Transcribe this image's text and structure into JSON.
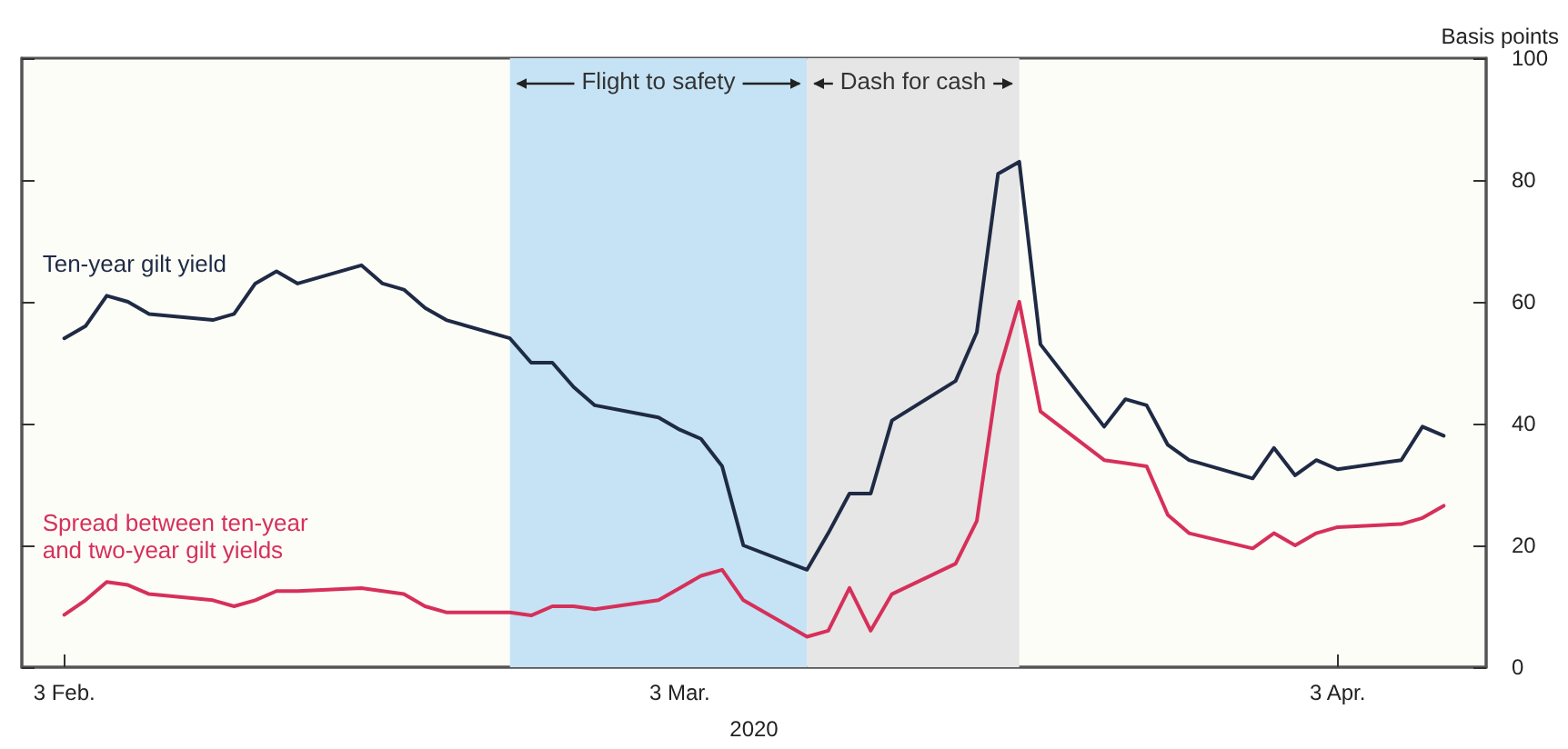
{
  "chart_data": {
    "type": "line",
    "xlabel": "2020",
    "ylabel": "Basis points",
    "x": [
      "2020-02-03",
      "2020-02-04",
      "2020-02-05",
      "2020-02-06",
      "2020-02-07",
      "2020-02-10",
      "2020-02-11",
      "2020-02-12",
      "2020-02-13",
      "2020-02-14",
      "2020-02-17",
      "2020-02-18",
      "2020-02-19",
      "2020-02-20",
      "2020-02-21",
      "2020-02-24",
      "2020-02-25",
      "2020-02-26",
      "2020-02-27",
      "2020-02-28",
      "2020-03-02",
      "2020-03-03",
      "2020-03-04",
      "2020-03-05",
      "2020-03-06",
      "2020-03-09",
      "2020-03-10",
      "2020-03-11",
      "2020-03-12",
      "2020-03-13",
      "2020-03-16",
      "2020-03-17",
      "2020-03-18",
      "2020-03-19",
      "2020-03-20",
      "2020-03-23",
      "2020-03-24",
      "2020-03-25",
      "2020-03-26",
      "2020-03-27",
      "2020-03-30",
      "2020-03-31",
      "2020-04-01",
      "2020-04-02",
      "2020-04-03",
      "2020-04-06",
      "2020-04-07",
      "2020-04-08"
    ],
    "series": [
      {
        "name": "Ten-year gilt yield",
        "color": "#1f2a44",
        "values": [
          54,
          56,
          61,
          60,
          58,
          57,
          58,
          63,
          65,
          63,
          66,
          63,
          62,
          59,
          57,
          54,
          50,
          50,
          46,
          43,
          41,
          39,
          37.5,
          33,
          20,
          16,
          22,
          28.5,
          28.5,
          40.5,
          47,
          55,
          81,
          83,
          53,
          39.5,
          44,
          43,
          36.5,
          34,
          31,
          36,
          31.5,
          34,
          32.5,
          34,
          39.5,
          38
        ]
      },
      {
        "name": "Spread between ten-year and two-year gilt yields",
        "color": "#d6305a",
        "values": [
          8.6,
          11,
          14,
          13.5,
          12,
          11,
          10,
          11,
          12.5,
          12.5,
          13,
          12.5,
          12,
          10,
          9,
          9,
          8.5,
          10,
          10,
          9.5,
          11,
          13,
          15,
          16,
          11,
          5,
          6,
          13,
          6,
          12,
          17,
          24,
          48,
          60,
          42,
          34,
          33.5,
          33,
          25,
          22,
          19.5,
          22,
          20,
          22,
          23,
          23.5,
          24.5,
          26.5
        ]
      }
    ],
    "xlim": [
      "2020-02-01",
      "2020-04-10"
    ],
    "xticks": [
      {
        "value": "2020-02-03",
        "label": "3 Feb."
      },
      {
        "value": "2020-03-03",
        "label": "3 Mar."
      },
      {
        "value": "2020-04-03",
        "label": "3 Apr."
      }
    ],
    "ylim": [
      0,
      100
    ],
    "yticks": [
      0,
      20,
      40,
      60,
      80,
      100
    ],
    "bands": [
      {
        "axis": "x",
        "from": "2020-02-24",
        "to": "2020-03-09",
        "label": "Flight to safety",
        "color": "#c5e3f5"
      },
      {
        "axis": "x",
        "from": "2020-03-09",
        "to": "2020-03-19",
        "label": "Dash for cash",
        "color": "#e6e6e6"
      }
    ],
    "grid": false,
    "legend": false,
    "marker": "none",
    "line_style": "solid"
  }
}
